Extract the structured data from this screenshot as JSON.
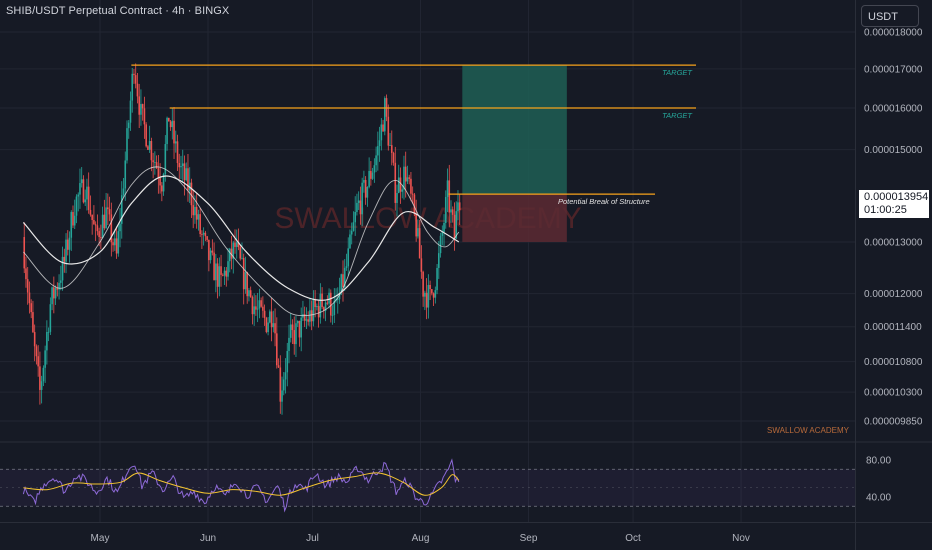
{
  "header": {
    "title": "SHIB/USDT Perpetual Contract · 4h · BINGX",
    "currency_button": "USDT",
    "current_price": "0.000013954",
    "countdown": "01:00:25"
  },
  "watermark": "SWALLOW ACADEMY",
  "footer_brand": "SWALLOW ACADEMY",
  "colors": {
    "background": "#161a25",
    "bull": "#26a69a",
    "bear": "#ef5350",
    "target_line": "#f7a21b",
    "ma": "#e8e8e8",
    "rsi": "#8e6ad8",
    "rsi_ma": "#f4c430",
    "profit_zone": "#1e5f55",
    "loss_zone": "#5c2a33"
  },
  "annotations": {
    "target1": "TARGET",
    "target2": "TARGET",
    "structure": "Potential Break of Structure"
  },
  "chart_data": [
    {
      "type": "candlestick",
      "title": "SHIB/USDT Perpetual Contract · 4h · BINGX",
      "x_ticks": [
        "May",
        "Jun",
        "Jul",
        "Aug",
        "Sep",
        "Oct",
        "Nov"
      ],
      "y_ticks": [
        "0.000018000",
        "0.000017000",
        "0.000016000",
        "0.000015000",
        "0.000013000",
        "0.000012000",
        "0.000011400",
        "0.000010800",
        "0.000010300",
        "0.000009850"
      ],
      "y_scale": "log",
      "ylim": [
        9.4e-06,
        1.84e-05
      ],
      "price_path": [
        {
          "x": "Apr 9",
          "y": 1.31e-05
        },
        {
          "x": "Apr 12",
          "y": 1.12e-05
        },
        {
          "x": "Apr 14",
          "y": 1.03e-05
        },
        {
          "x": "Apr 17",
          "y": 1.18e-05
        },
        {
          "x": "Apr 21",
          "y": 1.26e-05
        },
        {
          "x": "Apr 24",
          "y": 1.38e-05
        },
        {
          "x": "Apr 27",
          "y": 1.42e-05
        },
        {
          "x": "Apr 30",
          "y": 1.31e-05
        },
        {
          "x": "May 3",
          "y": 1.36e-05
        },
        {
          "x": "May 6",
          "y": 1.27e-05
        },
        {
          "x": "May 9",
          "y": 1.52e-05
        },
        {
          "x": "May 11",
          "y": 1.72e-05
        },
        {
          "x": "May 13",
          "y": 1.58e-05
        },
        {
          "x": "May 16",
          "y": 1.5e-05
        },
        {
          "x": "May 19",
          "y": 1.43e-05
        },
        {
          "x": "May 21",
          "y": 1.58e-05
        },
        {
          "x": "May 24",
          "y": 1.46e-05
        },
        {
          "x": "May 27",
          "y": 1.41e-05
        },
        {
          "x": "May 30",
          "y": 1.32e-05
        },
        {
          "x": "Jun 2",
          "y": 1.26e-05
        },
        {
          "x": "Jun 5",
          "y": 1.22e-05
        },
        {
          "x": "Jun 9",
          "y": 1.29e-05
        },
        {
          "x": "Jun 12",
          "y": 1.22e-05
        },
        {
          "x": "Jun 15",
          "y": 1.17e-05
        },
        {
          "x": "Jun 18",
          "y": 1.15e-05
        },
        {
          "x": "Jun 20",
          "y": 1.17e-05
        },
        {
          "x": "Jun 22",
          "y": 1.03e-05
        },
        {
          "x": "Jun 25",
          "y": 1.12e-05
        },
        {
          "x": "Jun 28",
          "y": 1.14e-05
        },
        {
          "x": "Jul 2",
          "y": 1.17e-05
        },
        {
          "x": "Jul 5",
          "y": 1.19e-05
        },
        {
          "x": "Jul 8",
          "y": 1.17e-05
        },
        {
          "x": "Jul 11",
          "y": 1.25e-05
        },
        {
          "x": "Jul 14",
          "y": 1.37e-05
        },
        {
          "x": "Jul 17",
          "y": 1.42e-05
        },
        {
          "x": "Jul 20",
          "y": 1.5e-05
        },
        {
          "x": "Jul 22",
          "y": 1.6e-05
        },
        {
          "x": "Jul 25",
          "y": 1.41e-05
        },
        {
          "x": "Jul 28",
          "y": 1.45e-05
        },
        {
          "x": "Jul 31",
          "y": 1.33e-05
        },
        {
          "x": "Aug 2",
          "y": 1.21e-05
        },
        {
          "x": "Aug 4",
          "y": 1.19e-05
        },
        {
          "x": "Aug 6",
          "y": 1.24e-05
        },
        {
          "x": "Aug 9",
          "y": 1.4e-05
        },
        {
          "x": "Aug 11",
          "y": 1.31e-05
        },
        {
          "x": "Aug 12",
          "y": 1.395e-05
        }
      ],
      "ma_fast": [
        {
          "x": "Apr 9",
          "y": 1.28e-05
        },
        {
          "x": "Apr 20",
          "y": 1.21e-05
        },
        {
          "x": "May 1",
          "y": 1.3e-05
        },
        {
          "x": "May 10",
          "y": 1.42e-05
        },
        {
          "x": "May 18",
          "y": 1.46e-05
        },
        {
          "x": "May 27",
          "y": 1.4e-05
        },
        {
          "x": "Jun 6",
          "y": 1.29e-05
        },
        {
          "x": "Jun 18",
          "y": 1.2e-05
        },
        {
          "x": "Jun 27",
          "y": 1.16e-05
        },
        {
          "x": "Jul 8",
          "y": 1.19e-05
        },
        {
          "x": "Jul 17",
          "y": 1.34e-05
        },
        {
          "x": "Jul 25",
          "y": 1.43e-05
        },
        {
          "x": "Aug 3",
          "y": 1.32e-05
        },
        {
          "x": "Aug 8",
          "y": 1.29e-05
        },
        {
          "x": "Aug 12",
          "y": 1.32e-05
        }
      ],
      "ma_slow": [
        {
          "x": "Apr 9",
          "y": 1.34e-05
        },
        {
          "x": "Apr 20",
          "y": 1.26e-05
        },
        {
          "x": "May 1",
          "y": 1.28e-05
        },
        {
          "x": "May 10",
          "y": 1.38e-05
        },
        {
          "x": "May 20",
          "y": 1.44e-05
        },
        {
          "x": "Jun 1",
          "y": 1.38e-05
        },
        {
          "x": "Jun 12",
          "y": 1.28e-05
        },
        {
          "x": "Jun 24",
          "y": 1.21e-05
        },
        {
          "x": "Jul 6",
          "y": 1.19e-05
        },
        {
          "x": "Jul 17",
          "y": 1.26e-05
        },
        {
          "x": "Jul 27",
          "y": 1.36e-05
        },
        {
          "x": "Aug 5",
          "y": 1.33e-05
        },
        {
          "x": "Aug 12",
          "y": 1.3e-05
        }
      ],
      "target_lines": [
        {
          "label": "TARGET",
          "price": 1.71e-05,
          "from": "May 10",
          "to": "Sep 18"
        },
        {
          "label": "TARGET",
          "price": 1.6e-05,
          "from": "May 21",
          "to": "Sep 18"
        }
      ],
      "structure_line": {
        "label": "Potential Break of Structure",
        "price": 1.4e-05,
        "from": "Aug 9",
        "to": "Sep 13"
      },
      "position": {
        "entry": 1.4e-05,
        "target": 1.71e-05,
        "stop": 1.3e-05,
        "from": "Aug 13",
        "to": "Sep 12"
      }
    },
    {
      "type": "line",
      "y_ticks": [
        "80.00",
        "40.00"
      ],
      "ylim": [
        20,
        95
      ],
      "bands": [
        70,
        50,
        30
      ],
      "rsi": [
        {
          "x": "Apr 9",
          "y": 48
        },
        {
          "x": "Apr 12",
          "y": 34
        },
        {
          "x": "Apr 15",
          "y": 55
        },
        {
          "x": "Apr 18",
          "y": 62
        },
        {
          "x": "Apr 21",
          "y": 46
        },
        {
          "x": "Apr 24",
          "y": 64
        },
        {
          "x": "Apr 27",
          "y": 58
        },
        {
          "x": "Apr 30",
          "y": 45
        },
        {
          "x": "May 3",
          "y": 60
        },
        {
          "x": "May 6",
          "y": 44
        },
        {
          "x": "May 9",
          "y": 70
        },
        {
          "x": "May 11",
          "y": 78
        },
        {
          "x": "May 13",
          "y": 52
        },
        {
          "x": "May 16",
          "y": 66
        },
        {
          "x": "May 19",
          "y": 48
        },
        {
          "x": "May 22",
          "y": 60
        },
        {
          "x": "May 25",
          "y": 38
        },
        {
          "x": "May 28",
          "y": 46
        },
        {
          "x": "May 31",
          "y": 34
        },
        {
          "x": "Jun 3",
          "y": 52
        },
        {
          "x": "Jun 6",
          "y": 40
        },
        {
          "x": "Jun 9",
          "y": 58
        },
        {
          "x": "Jun 12",
          "y": 42
        },
        {
          "x": "Jun 15",
          "y": 50
        },
        {
          "x": "Jun 18",
          "y": 36
        },
        {
          "x": "Jun 21",
          "y": 52
        },
        {
          "x": "Jun 23",
          "y": 30
        },
        {
          "x": "Jun 26",
          "y": 56
        },
        {
          "x": "Jun 29",
          "y": 48
        },
        {
          "x": "Jul 2",
          "y": 66
        },
        {
          "x": "Jul 5",
          "y": 52
        },
        {
          "x": "Jul 8",
          "y": 62
        },
        {
          "x": "Jul 11",
          "y": 56
        },
        {
          "x": "Jul 14",
          "y": 72
        },
        {
          "x": "Jul 17",
          "y": 58
        },
        {
          "x": "Jul 20",
          "y": 70
        },
        {
          "x": "Jul 22",
          "y": 74
        },
        {
          "x": "Jul 25",
          "y": 46
        },
        {
          "x": "Jul 28",
          "y": 58
        },
        {
          "x": "Jul 31",
          "y": 38
        },
        {
          "x": "Aug 2",
          "y": 34
        },
        {
          "x": "Aug 4",
          "y": 40
        },
        {
          "x": "Aug 6",
          "y": 52
        },
        {
          "x": "Aug 8",
          "y": 62
        },
        {
          "x": "Aug 10",
          "y": 78
        },
        {
          "x": "Aug 11",
          "y": 60
        },
        {
          "x": "Aug 12",
          "y": 54
        }
      ],
      "rsi_ma": [
        {
          "x": "Apr 9",
          "y": 50
        },
        {
          "x": "Apr 16",
          "y": 48
        },
        {
          "x": "Apr 23",
          "y": 55
        },
        {
          "x": "Apr 30",
          "y": 54
        },
        {
          "x": "May 7",
          "y": 56
        },
        {
          "x": "May 12",
          "y": 66
        },
        {
          "x": "May 18",
          "y": 58
        },
        {
          "x": "May 25",
          "y": 50
        },
        {
          "x": "Jun 1",
          "y": 44
        },
        {
          "x": "Jun 8",
          "y": 48
        },
        {
          "x": "Jun 15",
          "y": 46
        },
        {
          "x": "Jun 22",
          "y": 42
        },
        {
          "x": "Jun 29",
          "y": 50
        },
        {
          "x": "Jul 6",
          "y": 58
        },
        {
          "x": "Jul 13",
          "y": 62
        },
        {
          "x": "Jul 20",
          "y": 66
        },
        {
          "x": "Jul 27",
          "y": 56
        },
        {
          "x": "Aug 2",
          "y": 42
        },
        {
          "x": "Aug 7",
          "y": 50
        },
        {
          "x": "Aug 10",
          "y": 64
        },
        {
          "x": "Aug 12",
          "y": 58
        }
      ]
    }
  ]
}
